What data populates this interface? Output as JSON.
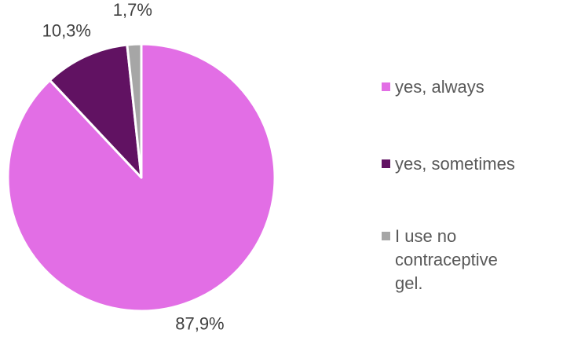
{
  "chart_data": {
    "type": "pie",
    "title": "",
    "slices": [
      {
        "label": "yes, always",
        "value": 87.9,
        "display": "87,9%",
        "color": "#E26EE5"
      },
      {
        "label": "yes, sometimes",
        "value": 10.3,
        "display": "10,3%",
        "color": "#611262"
      },
      {
        "label": "I use no contraceptive gel.",
        "value": 1.7,
        "display": "1,7%",
        "color": "#A6A6A6"
      }
    ],
    "start_angle": "12 o'clock",
    "direction": "clockwise",
    "legend_position": "right"
  }
}
